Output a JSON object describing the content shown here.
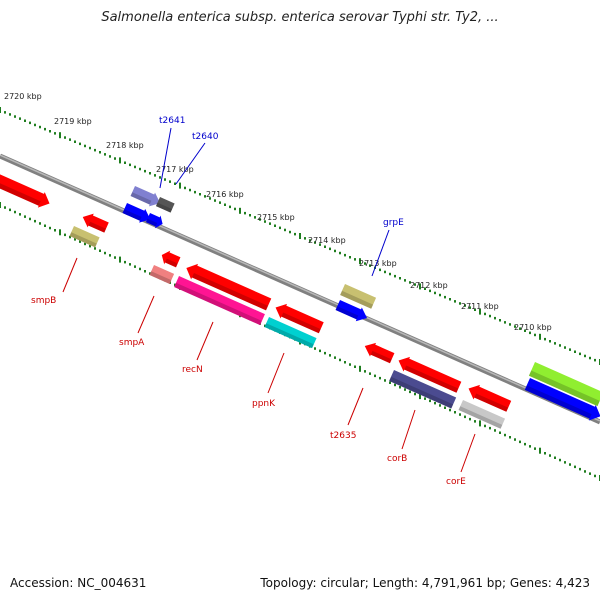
{
  "title": "Salmonella enterica subsp. enterica serovar Typhi str. Ty2, ...",
  "footer": {
    "accession": "Accession: NC_004631",
    "topology": "Topology: circular; Length: 4,791,961 bp; Genes: 4,423"
  },
  "colors": {
    "backbone": "#808080",
    "tick": "#1e7d1e",
    "label_forward": "#0000cc",
    "label_reverse": "#cc0000"
  },
  "ticks": [
    {
      "label": "2720 kbp"
    },
    {
      "label": "2719 kbp"
    },
    {
      "label": "2718 kbp"
    },
    {
      "label": "2717 kbp"
    },
    {
      "label": "2716 kbp"
    },
    {
      "label": "2715 kbp"
    },
    {
      "label": "2714 kbp"
    },
    {
      "label": "2713 kbp"
    },
    {
      "label": "2712 kbp"
    },
    {
      "label": "2711 kbp"
    },
    {
      "label": "2710 kbp"
    }
  ],
  "forward_labels": [
    {
      "name": "t2641"
    },
    {
      "name": "t2640"
    },
    {
      "name": "grpE"
    }
  ],
  "reverse_labels": [
    {
      "name": "smpB"
    },
    {
      "name": "smpA"
    },
    {
      "name": "recN"
    },
    {
      "name": "ppnK"
    },
    {
      "name": "t2635"
    },
    {
      "name": "corB"
    },
    {
      "name": "corE"
    }
  ],
  "features": [
    {
      "color": "#ff0000"
    },
    {
      "color": "#8080d0"
    },
    {
      "color": "#555555"
    },
    {
      "color": "#0000ff"
    },
    {
      "color": "#0000ff"
    },
    {
      "color": "#c8c070"
    },
    {
      "color": "#0000ff"
    },
    {
      "color": "#90ee30"
    },
    {
      "color": "#0000ff"
    },
    {
      "color": "#ff0000"
    },
    {
      "color": "#c8c070"
    },
    {
      "color": "#ff0000"
    },
    {
      "color": "#f08080"
    },
    {
      "color": "#ff0000"
    },
    {
      "color": "#ff1493"
    },
    {
      "color": "#ff0000"
    },
    {
      "color": "#00d0d0"
    },
    {
      "color": "#ff0000"
    },
    {
      "color": "#ff0000"
    },
    {
      "color": "#4b4b90"
    },
    {
      "color": "#ff0000"
    },
    {
      "color": "#c8c8c8"
    }
  ]
}
